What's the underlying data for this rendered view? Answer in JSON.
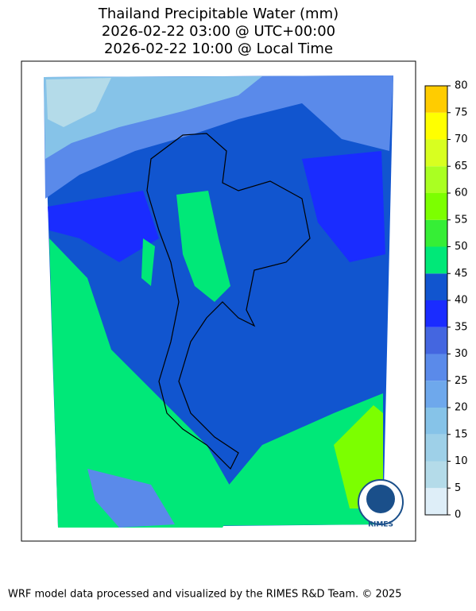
{
  "header": {
    "title_lines": [
      "Thailand Precipitable Water (mm)",
      "2026-02-22 03:00 @ UTC+00:00",
      "2026-02-22 10:00 @ Local Time"
    ]
  },
  "colorbar": {
    "lim": [
      0,
      80
    ],
    "ticks": [
      0,
      5,
      10,
      15,
      20,
      25,
      30,
      35,
      40,
      45,
      50,
      55,
      60,
      65,
      70,
      75,
      80
    ],
    "colors": [
      "#deeef8",
      "#b4dbe9",
      "#9ed0e8",
      "#86c3e8",
      "#6ea8ec",
      "#5a8aea",
      "#4466e0",
      "#1a2cff",
      "#1155cf",
      "#00e878",
      "#36ee36",
      "#7cff00",
      "#aaff22",
      "#d8ff20",
      "#ffff00",
      "#ffcc00"
    ]
  },
  "logo": {
    "text": "RIMES"
  },
  "footer": {
    "text": "WRF model data processed and visualized by the RIMES R&D Team. © 2025"
  }
}
